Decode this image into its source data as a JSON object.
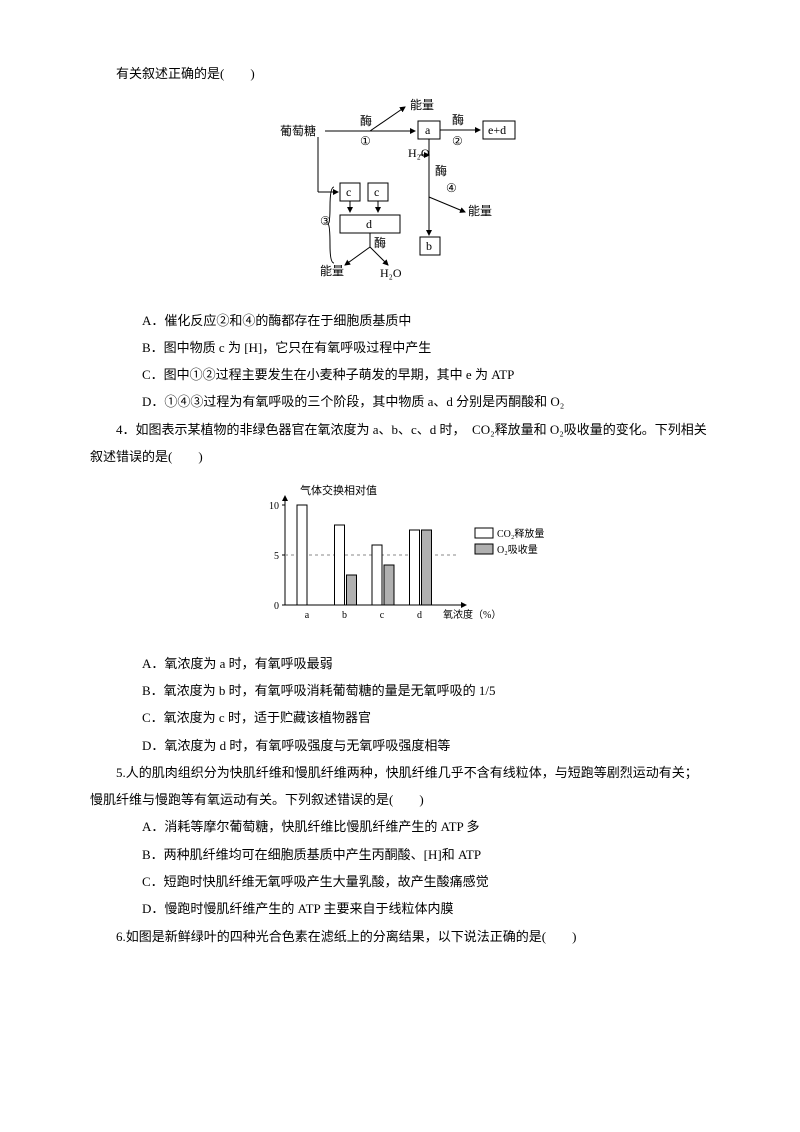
{
  "q_stem": "有关叙述正确的是(　　)",
  "diagram1": {
    "labels": {
      "glucose": "葡萄糖",
      "enzyme": "酶",
      "energy": "能量",
      "h2o": "H₂O",
      "a": "a",
      "b": "b",
      "c": "c",
      "d": "d",
      "ed": "e+d",
      "n1": "①",
      "n2": "②",
      "n3": "③",
      "n4": "④"
    }
  },
  "q3_options": {
    "A": "A．催化反应②和④的酶都存在于细胞质基质中",
    "B": "B．图中物质 c 为 [H]，它只在有氧呼吸过程中产生",
    "C": "C．图中①②过程主要发生在小麦种子萌发的早期，其中 e 为 ATP",
    "D": "D．①④③过程为有氧呼吸的三个阶段，其中物质 a、d 分别是丙酮酸和 O₂"
  },
  "q4_stem_pre": "4．如图表示某植物的非绿色器官在氧浓度为 a、b、c、d 时，　CO₂释放量和 O₂吸收量的变化。下列相关叙述错误的是(　　)",
  "chart": {
    "y_label": "气体交换相对值",
    "x_label": "氧浓度（%）",
    "y_ticks": [
      0,
      5,
      10
    ],
    "categories": [
      "a",
      "b",
      "c",
      "d"
    ],
    "series1_name": "CO₂释放量",
    "series2_name": "O₂吸收量",
    "series1": [
      10,
      8,
      6,
      7.5
    ],
    "series2": [
      0,
      3,
      4,
      7.5
    ],
    "bar_fill1": "#ffffff",
    "bar_fill2": "#b0b0b0",
    "bar_stroke": "#000000",
    "axis_color": "#000000",
    "bg": "#ffffff"
  },
  "q4_options": {
    "A": "A．氧浓度为 a 时，有氧呼吸最弱",
    "B": "B．氧浓度为 b 时，有氧呼吸消耗葡萄糖的量是无氧呼吸的 1/5",
    "C": "C．氧浓度为 c 时，适于贮藏该植物器官",
    "D": "D．氧浓度为 d 时，有氧呼吸强度与无氧呼吸强度相等"
  },
  "q5_stem": "5.人的肌肉组织分为快肌纤维和慢肌纤维两种，快肌纤维几乎不含有线粒体，与短跑等剧烈运动有关；慢肌纤维与慢跑等有氧运动有关。下列叙述错误的是(　　)",
  "q5_options": {
    "A": "A．消耗等摩尔葡萄糖，快肌纤维比慢肌纤维产生的 ATP 多",
    "B": "B．两种肌纤维均可在细胞质基质中产生丙酮酸、[H]和 ATP",
    "C": "C．短跑时快肌纤维无氧呼吸产生大量乳酸，故产生酸痛感觉",
    "D": "D．慢跑时慢肌纤维产生的 ATP 主要来自于线粒体内膜"
  },
  "q6_stem": "6.如图是新鲜绿叶的四种光合色素在滤纸上的分离结果，以下说法正确的是(　　)"
}
